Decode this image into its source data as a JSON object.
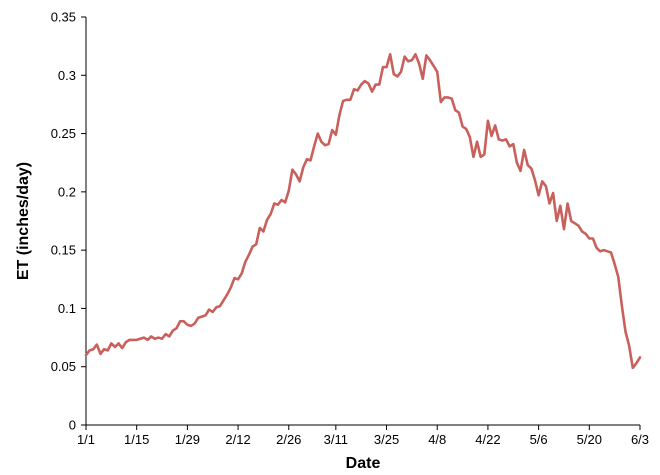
{
  "chart_data": {
    "type": "line",
    "title": "",
    "xlabel": "Date",
    "ylabel": "ET (inches/day)",
    "x_range": [
      "1/1",
      "6/3"
    ],
    "ylim": [
      0,
      0.35
    ],
    "y_ticks": [
      {
        "value": 0,
        "label": "0"
      },
      {
        "value": 0.05,
        "label": "0.05"
      },
      {
        "value": 0.1,
        "label": "0.1"
      },
      {
        "value": 0.15,
        "label": "0.15"
      },
      {
        "value": 0.2,
        "label": "0.2"
      },
      {
        "value": 0.25,
        "label": "0.25"
      },
      {
        "value": 0.3,
        "label": "0.3"
      },
      {
        "value": 0.35,
        "label": "0.35"
      }
    ],
    "x_ticks": [
      {
        "value": "1/1",
        "label": "1/1"
      },
      {
        "value": "1/15",
        "label": "1/15"
      },
      {
        "value": "1/29",
        "label": "1/29"
      },
      {
        "value": "2/12",
        "label": "2/12"
      },
      {
        "value": "2/26",
        "label": "2/26"
      },
      {
        "value": "3/11",
        "label": "3/11"
      },
      {
        "value": "3/25",
        "label": "3/25"
      },
      {
        "value": "4/8",
        "label": "4/8"
      },
      {
        "value": "4/22",
        "label": "4/22"
      },
      {
        "value": "5/6",
        "label": "5/6"
      },
      {
        "value": "5/20",
        "label": "5/20"
      },
      {
        "value": "6/3",
        "label": "6/3"
      }
    ],
    "grid": false,
    "legend": "none",
    "series": [
      {
        "color": "#c9605c",
        "points": [
          [
            "1/1",
            0.06
          ],
          [
            "1/2",
            0.064
          ],
          [
            "1/3",
            0.065
          ],
          [
            "1/4",
            0.069
          ],
          [
            "1/5",
            0.061
          ],
          [
            "1/6",
            0.065
          ],
          [
            "1/7",
            0.064
          ],
          [
            "1/8",
            0.07
          ],
          [
            "1/9",
            0.067
          ],
          [
            "1/10",
            0.07
          ],
          [
            "1/11",
            0.066
          ],
          [
            "1/12",
            0.071
          ],
          [
            "1/13",
            0.073
          ],
          [
            "1/14",
            0.073
          ],
          [
            "1/15",
            0.073
          ],
          [
            "1/16",
            0.074
          ],
          [
            "1/17",
            0.075
          ],
          [
            "1/18",
            0.073
          ],
          [
            "1/19",
            0.076
          ],
          [
            "1/20",
            0.074
          ],
          [
            "1/21",
            0.075
          ],
          [
            "1/22",
            0.074
          ],
          [
            "1/23",
            0.078
          ],
          [
            "1/24",
            0.076
          ],
          [
            "1/25",
            0.081
          ],
          [
            "1/26",
            0.083
          ],
          [
            "1/27",
            0.089
          ],
          [
            "1/28",
            0.089
          ],
          [
            "1/29",
            0.086
          ],
          [
            "1/30",
            0.085
          ],
          [
            "1/31",
            0.087
          ],
          [
            "2/1",
            0.092
          ],
          [
            "2/2",
            0.093
          ],
          [
            "2/3",
            0.094
          ],
          [
            "2/4",
            0.099
          ],
          [
            "2/5",
            0.097
          ],
          [
            "2/6",
            0.101
          ],
          [
            "2/7",
            0.102
          ],
          [
            "2/8",
            0.107
          ],
          [
            "2/9",
            0.112
          ],
          [
            "2/10",
            0.118
          ],
          [
            "2/11",
            0.126
          ],
          [
            "2/12",
            0.125
          ],
          [
            "2/13",
            0.13
          ],
          [
            "2/14",
            0.14
          ],
          [
            "2/15",
            0.146
          ],
          [
            "2/16",
            0.153
          ],
          [
            "2/17",
            0.155
          ],
          [
            "2/18",
            0.169
          ],
          [
            "2/19",
            0.166
          ],
          [
            "2/20",
            0.176
          ],
          [
            "2/21",
            0.181
          ],
          [
            "2/22",
            0.19
          ],
          [
            "2/23",
            0.189
          ],
          [
            "2/24",
            0.193
          ],
          [
            "2/25",
            0.191
          ],
          [
            "2/26",
            0.201
          ],
          [
            "2/27",
            0.219
          ],
          [
            "2/28",
            0.215
          ],
          [
            "3/1",
            0.209
          ],
          [
            "3/2",
            0.221
          ],
          [
            "3/3",
            0.228
          ],
          [
            "3/4",
            0.227
          ],
          [
            "3/5",
            0.239
          ],
          [
            "3/6",
            0.25
          ],
          [
            "3/7",
            0.243
          ],
          [
            "3/8",
            0.24
          ],
          [
            "3/9",
            0.241
          ],
          [
            "3/10",
            0.253
          ],
          [
            "3/11",
            0.249
          ],
          [
            "3/12",
            0.266
          ],
          [
            "3/13",
            0.278
          ],
          [
            "3/14",
            0.279
          ],
          [
            "3/15",
            0.279
          ],
          [
            "3/16",
            0.288
          ],
          [
            "3/17",
            0.287
          ],
          [
            "3/18",
            0.292
          ],
          [
            "3/19",
            0.295
          ],
          [
            "3/20",
            0.293
          ],
          [
            "3/21",
            0.286
          ],
          [
            "3/22",
            0.292
          ],
          [
            "3/23",
            0.292
          ],
          [
            "3/24",
            0.307
          ],
          [
            "3/25",
            0.307
          ],
          [
            "3/26",
            0.318
          ],
          [
            "3/27",
            0.301
          ],
          [
            "3/28",
            0.299
          ],
          [
            "3/29",
            0.303
          ],
          [
            "3/30",
            0.316
          ],
          [
            "3/31",
            0.312
          ],
          [
            "4/1",
            0.313
          ],
          [
            "4/2",
            0.318
          ],
          [
            "4/3",
            0.31
          ],
          [
            "4/4",
            0.297
          ],
          [
            "4/5",
            0.317
          ],
          [
            "4/6",
            0.313
          ],
          [
            "4/7",
            0.308
          ],
          [
            "4/8",
            0.303
          ],
          [
            "4/9",
            0.277
          ],
          [
            "4/10",
            0.281
          ],
          [
            "4/11",
            0.281
          ],
          [
            "4/12",
            0.28
          ],
          [
            "4/13",
            0.27
          ],
          [
            "4/14",
            0.268
          ],
          [
            "4/15",
            0.256
          ],
          [
            "4/16",
            0.254
          ],
          [
            "4/17",
            0.247
          ],
          [
            "4/18",
            0.23
          ],
          [
            "4/19",
            0.243
          ],
          [
            "4/20",
            0.23
          ],
          [
            "4/21",
            0.232
          ],
          [
            "4/22",
            0.261
          ],
          [
            "4/23",
            0.248
          ],
          [
            "4/24",
            0.257
          ],
          [
            "4/25",
            0.245
          ],
          [
            "4/26",
            0.244
          ],
          [
            "4/27",
            0.245
          ],
          [
            "4/28",
            0.239
          ],
          [
            "4/29",
            0.241
          ],
          [
            "4/30",
            0.225
          ],
          [
            "5/1",
            0.218
          ],
          [
            "5/2",
            0.236
          ],
          [
            "5/3",
            0.223
          ],
          [
            "5/4",
            0.22
          ],
          [
            "5/5",
            0.21
          ],
          [
            "5/6",
            0.197
          ],
          [
            "5/7",
            0.209
          ],
          [
            "5/8",
            0.205
          ],
          [
            "5/9",
            0.19
          ],
          [
            "5/10",
            0.199
          ],
          [
            "5/11",
            0.175
          ],
          [
            "5/12",
            0.188
          ],
          [
            "5/13",
            0.168
          ],
          [
            "5/14",
            0.19
          ],
          [
            "5/15",
            0.175
          ],
          [
            "5/16",
            0.173
          ],
          [
            "5/17",
            0.171
          ],
          [
            "5/18",
            0.166
          ],
          [
            "5/19",
            0.164
          ],
          [
            "5/20",
            0.16
          ],
          [
            "5/21",
            0.16
          ],
          [
            "5/22",
            0.152
          ],
          [
            "5/23",
            0.149
          ],
          [
            "5/24",
            0.15
          ],
          [
            "5/25",
            0.149
          ],
          [
            "5/26",
            0.148
          ],
          [
            "5/27",
            0.138
          ],
          [
            "5/28",
            0.127
          ],
          [
            "5/29",
            0.102
          ],
          [
            "5/30",
            0.08
          ],
          [
            "5/31",
            0.068
          ],
          [
            "6/1",
            0.049
          ],
          [
            "6/2",
            0.053
          ],
          [
            "6/3",
            0.058
          ]
        ]
      }
    ]
  }
}
